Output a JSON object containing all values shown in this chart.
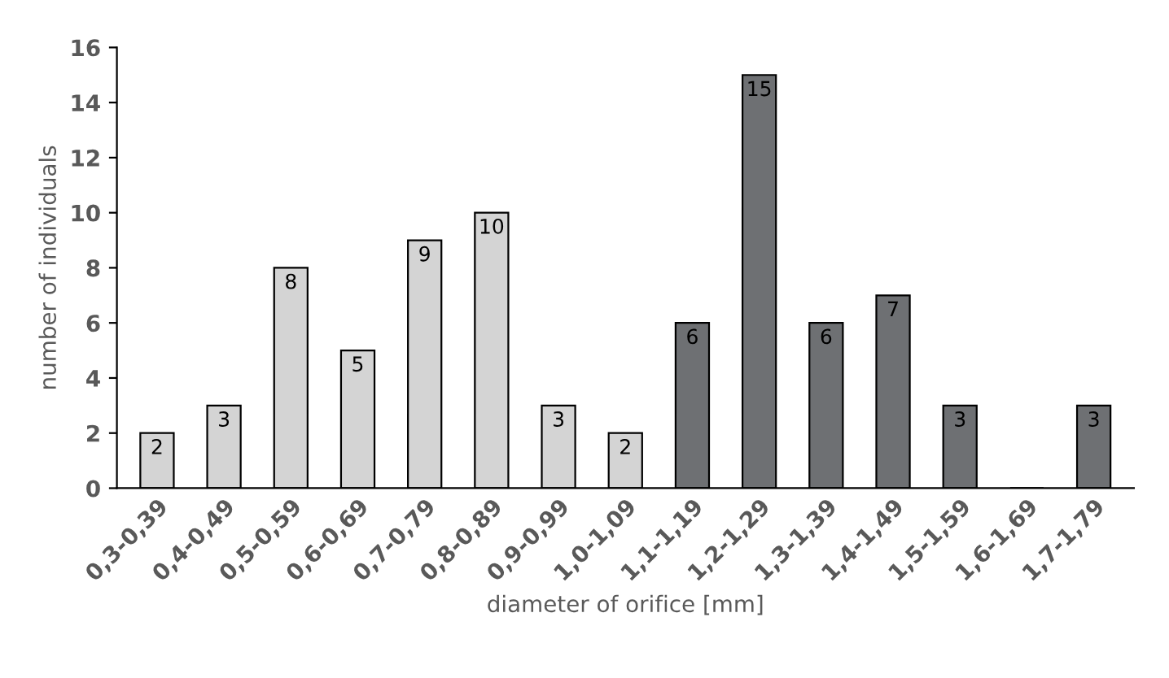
{
  "chart_data": {
    "type": "bar",
    "xlabel": "diameter of orifice [mm]",
    "ylabel": "number of individuals",
    "categories": [
      "0,3-0,39",
      "0,4-0,49",
      "0,5-0,59",
      "0,6-0,69",
      "0,7-0,79",
      "0,8-0,89",
      "0,9-0,99",
      "1,0-1,09",
      "1,1-1,19",
      "1,2-1,29",
      "1,3-1,39",
      "1,4-1,49",
      "1,5-1,59",
      "1,6-1,69",
      "1,7-1,79"
    ],
    "values": [
      2,
      3,
      8,
      5,
      9,
      10,
      3,
      2,
      6,
      15,
      6,
      7,
      3,
      0,
      3
    ],
    "value_labels": [
      "2",
      "3",
      "8",
      "5",
      "9",
      "10",
      "3",
      "2",
      "6",
      "15",
      "6",
      "7",
      "3",
      null,
      "3"
    ],
    "colors": [
      "#d4d4d4",
      "#d4d4d4",
      "#d4d4d4",
      "#d4d4d4",
      "#d4d4d4",
      "#d4d4d4",
      "#d4d4d4",
      "#d4d4d4",
      "#6e7073",
      "#6e7073",
      "#6e7073",
      "#6e7073",
      "#6e7073",
      "#6e7073",
      "#6e7073"
    ],
    "ylim": [
      0,
      16
    ],
    "yticks": [
      0,
      2,
      4,
      6,
      8,
      10,
      12,
      14,
      16
    ],
    "grid": false,
    "legend": false
  }
}
